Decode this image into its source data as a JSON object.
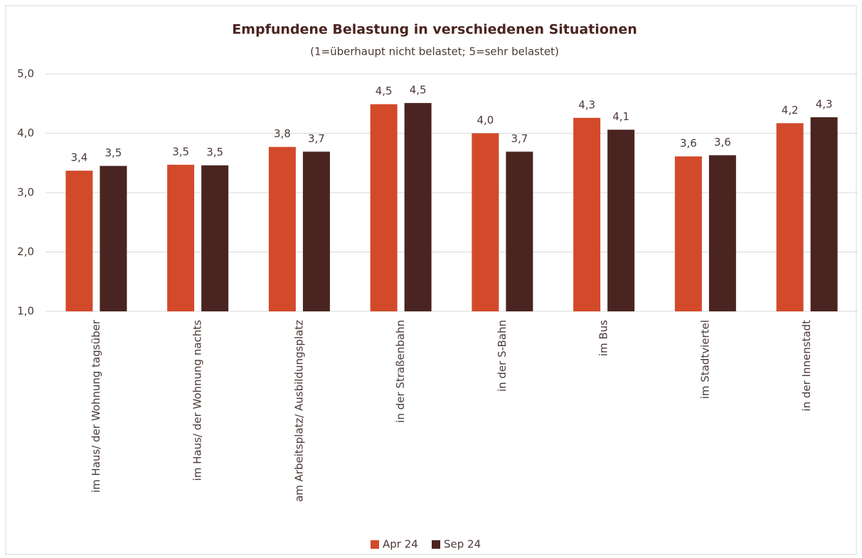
{
  "chart_data": {
    "type": "bar",
    "title": "Empfundene Belastung in verschiedenen Situationen",
    "subtitle": "(1=überhaupt nicht belastet; 5=sehr belastet)",
    "categories": [
      "im Haus/ der Wohnung tagsüber",
      "im Haus/ der Wohnung nachts",
      "am Arbeitsplatz/ Ausbildungsplatz",
      "in der Straßenbahn",
      "in der S-Bahn",
      "im Bus",
      "im Stadtviertel",
      "in der Innenstadt"
    ],
    "series": [
      {
        "name": "Apr 24",
        "color": "#d24a2a",
        "values": [
          3.37,
          3.47,
          3.77,
          4.49,
          4.0,
          4.26,
          3.61,
          4.17
        ],
        "value_labels": [
          "3,4",
          "3,5",
          "3,8",
          "4,5",
          "4,0",
          "4,3",
          "3,6",
          "4,2"
        ]
      },
      {
        "name": "Sep 24",
        "color": "#4a2420",
        "values": [
          3.45,
          3.46,
          3.69,
          4.51,
          3.69,
          4.06,
          3.63,
          4.27
        ],
        "value_labels": [
          "3,5",
          "3,5",
          "3,7",
          "4,5",
          "3,7",
          "4,1",
          "3,6",
          "4,3"
        ]
      }
    ],
    "ylim": [
      1,
      5
    ],
    "yticks": [
      {
        "value": 1,
        "label": "1,0"
      },
      {
        "value": 2,
        "label": "2,0"
      },
      {
        "value": 3,
        "label": "3,0"
      },
      {
        "value": 4,
        "label": "4,0"
      },
      {
        "value": 5,
        "label": "5,0"
      }
    ],
    "grid": true,
    "legend": "bottom"
  }
}
